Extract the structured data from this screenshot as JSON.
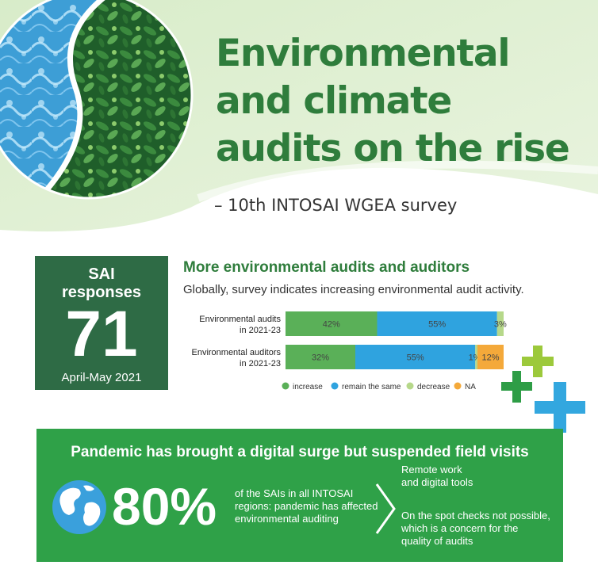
{
  "header": {
    "title_lines": [
      "Environmental",
      "and climate",
      "audits on the rise"
    ],
    "subtitle": "– 10th INTOSAI WGEA survey"
  },
  "sai": {
    "line1": "SAI",
    "line2": "responses",
    "number": "71",
    "date": "April-May 2021"
  },
  "section": {
    "title": "More environmental audits and auditors",
    "subtitle": "Globally, survey indicates increasing environmental audit activity."
  },
  "chart_data": {
    "type": "bar",
    "orientation": "horizontal",
    "stacked": true,
    "categories": [
      [
        "Environmental audits",
        "in 2021-23"
      ],
      [
        "Environmental auditors",
        "in 2021-23"
      ]
    ],
    "series": [
      {
        "name": "increase",
        "values": [
          42,
          32
        ],
        "labels": [
          "42%",
          "32%"
        ],
        "color": "#5ab058"
      },
      {
        "name": "remain the same",
        "values": [
          55,
          55
        ],
        "labels": [
          "55%",
          "55%"
        ],
        "color": "#2fa3df"
      },
      {
        "name": "decrease",
        "values": [
          3,
          1
        ],
        "labels": [
          "3%",
          "1%"
        ],
        "color": "#b6d88a"
      },
      {
        "name": "NA",
        "values": [
          0,
          12
        ],
        "labels": [
          "",
          "12%"
        ],
        "color": "#f4a93a"
      }
    ],
    "xlim": [
      0,
      100
    ],
    "legend": "bottom"
  },
  "pandemic": {
    "title": "Pandemic has brought a digital surge but suspended field visits",
    "percent": "80%",
    "desc": [
      "of the SAIs in all INTOSAI",
      "regions: pandemic has affected",
      "environmental auditing"
    ],
    "right1": [
      "Remote work",
      "and digital tools"
    ],
    "right2": [
      "On the spot checks not possible,",
      "which is a concern for the",
      "quality of audits"
    ]
  },
  "icons": [
    "globe-icon",
    "chevron-right-icon",
    "plus-icon"
  ]
}
